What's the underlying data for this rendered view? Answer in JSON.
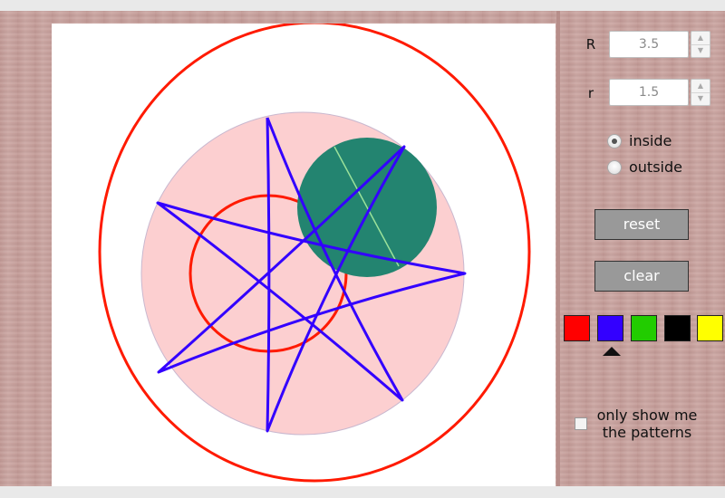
{
  "controls": {
    "R": {
      "label": "R",
      "value": "3.5"
    },
    "r": {
      "label": "r",
      "value": "1.5"
    },
    "mode": {
      "options": [
        {
          "label": "inside",
          "checked": true
        },
        {
          "label": "outside",
          "checked": false
        }
      ]
    },
    "buttons": {
      "reset": "reset",
      "clear": "clear"
    },
    "colors": {
      "swatches": [
        "#ff0000",
        "#3300ff",
        "#22cc00",
        "#000000",
        "#ffff00"
      ],
      "selected_index": 1
    },
    "only_patterns": {
      "label": "only show me the patterns",
      "checked": false
    }
  },
  "scene": {
    "colors": {
      "fixed_circle_fill": "#fccfd0",
      "rolling_circle_fill": "#238470",
      "guide_circles": "#ff1a00",
      "pattern": "#3300ff",
      "radius_line": "#9be29a"
    }
  }
}
